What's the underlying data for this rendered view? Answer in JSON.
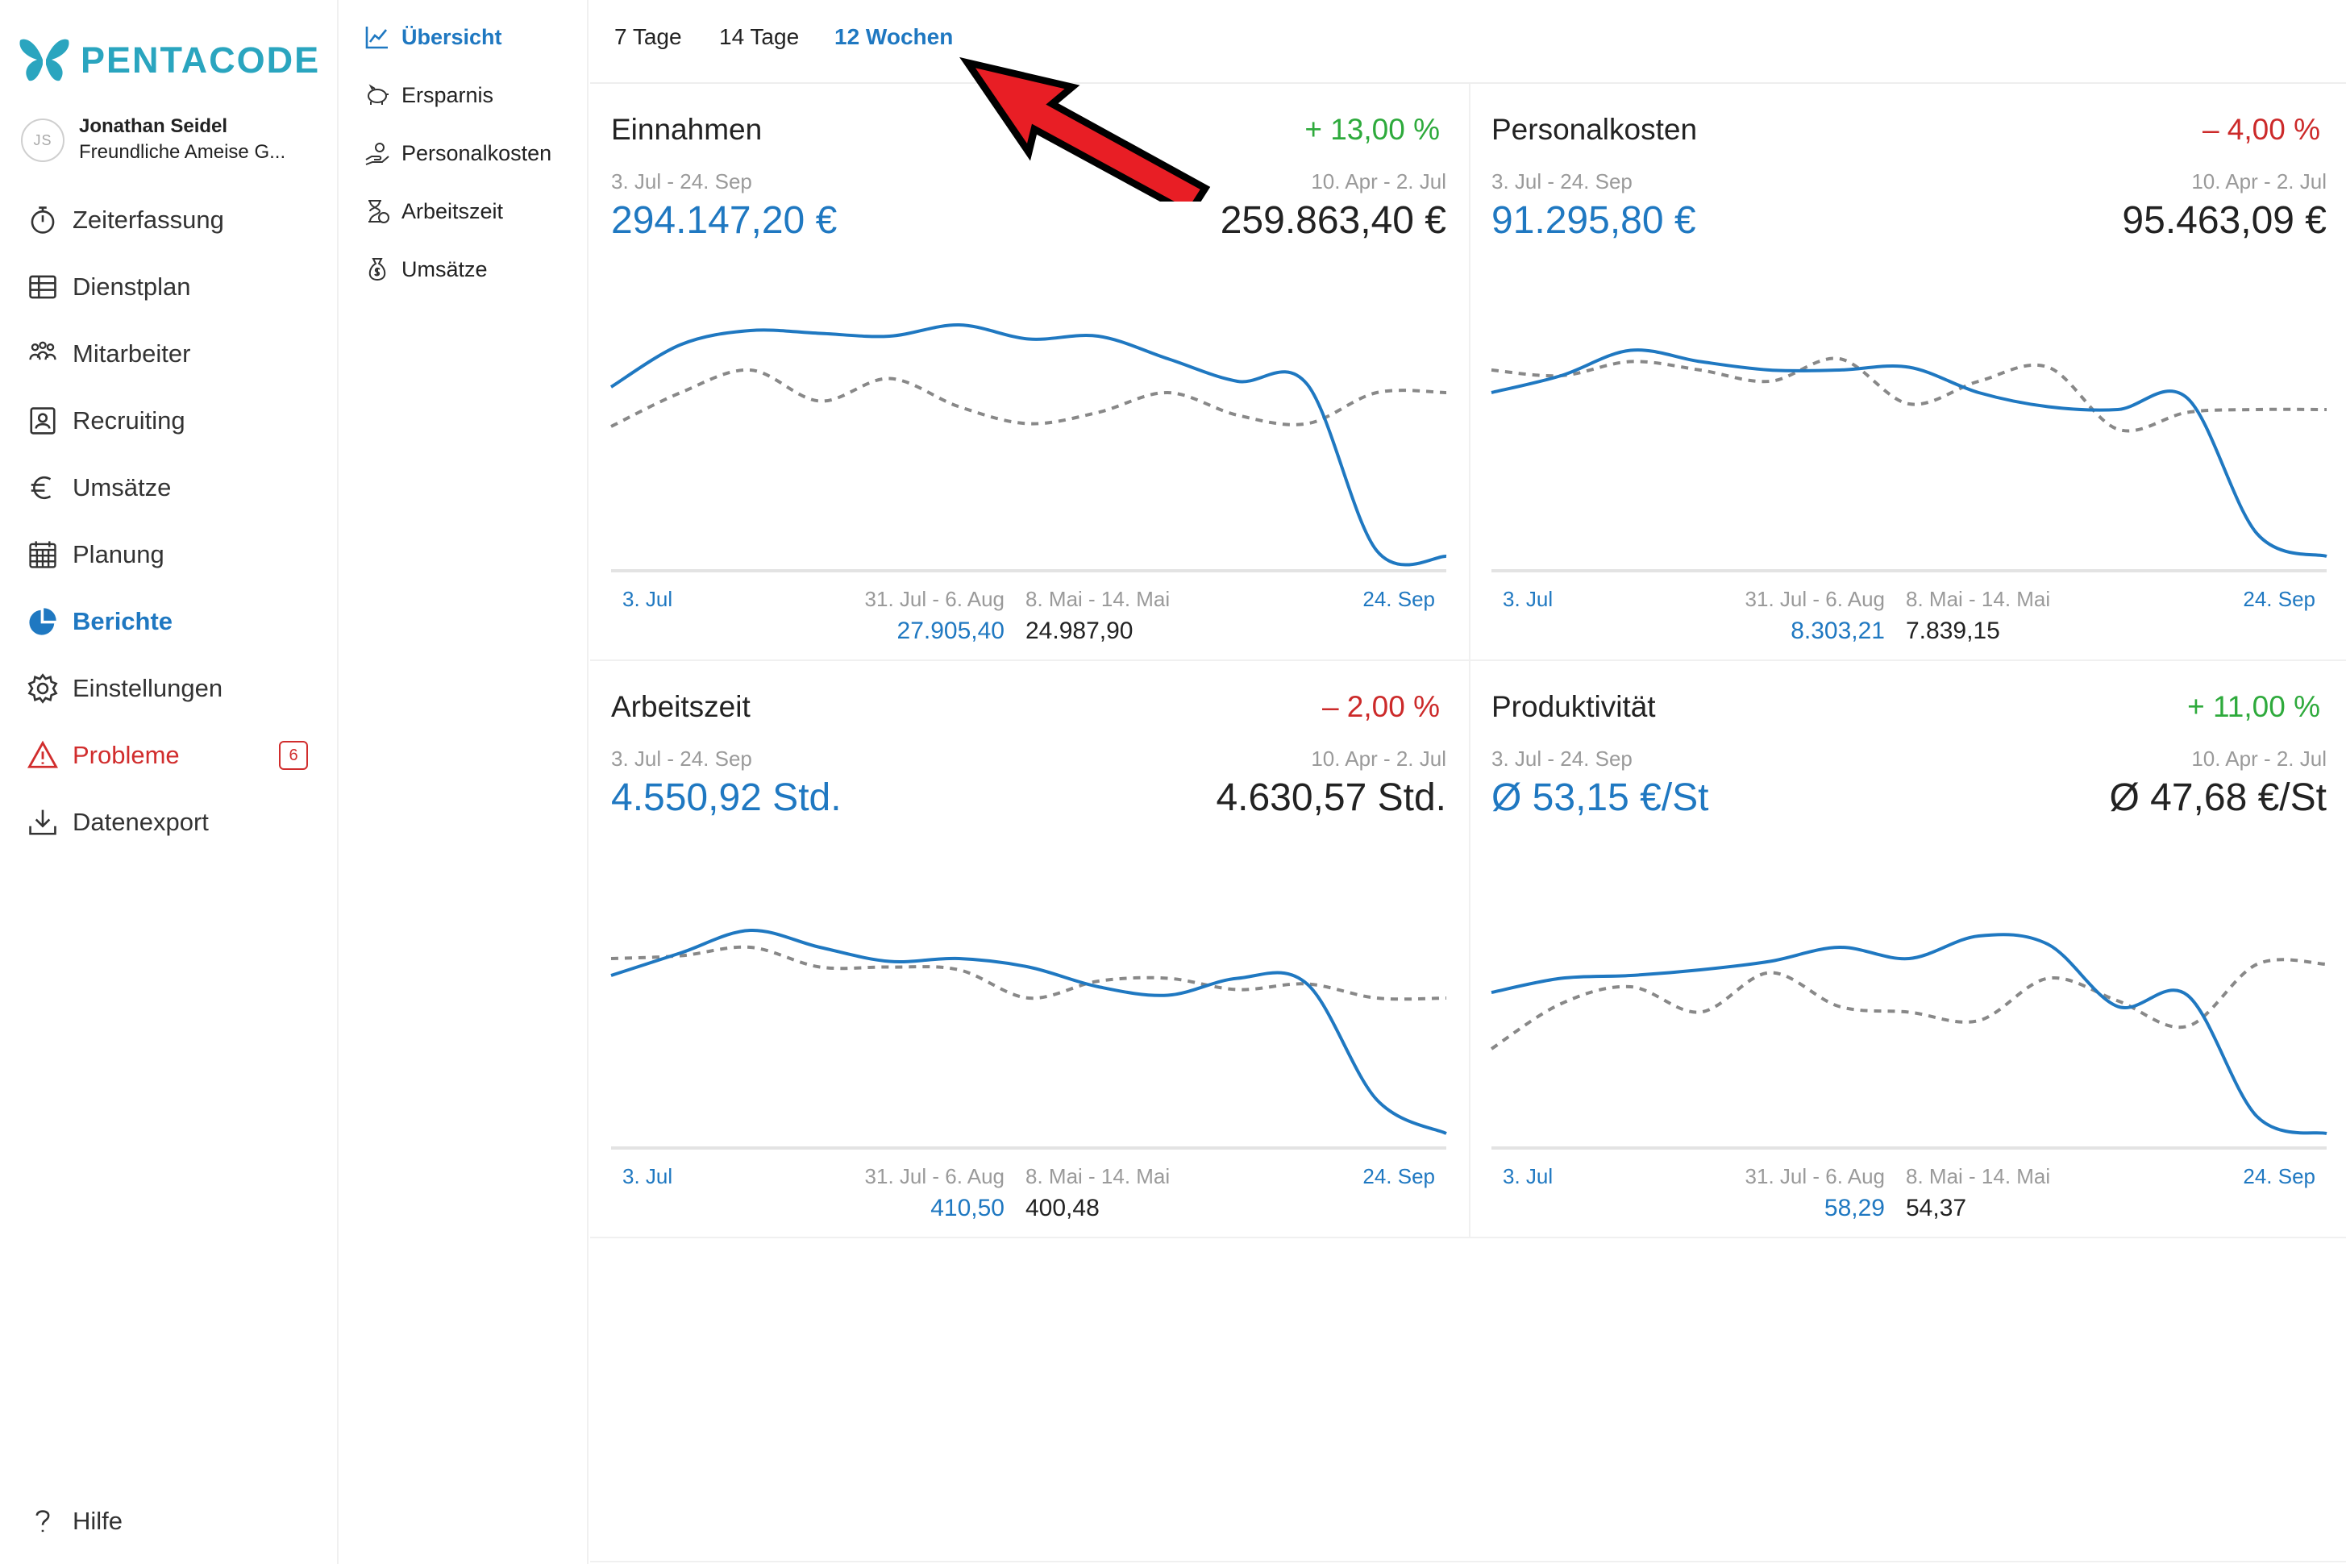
{
  "app": {
    "logo_text": "PENTACODE"
  },
  "user": {
    "initials": "JS",
    "name": "Jonathan Seidel",
    "company": "Freundliche Ameise G..."
  },
  "sidebar": {
    "items": [
      {
        "label": "Zeiterfassung",
        "icon": "stopwatch-icon"
      },
      {
        "label": "Dienstplan",
        "icon": "table-icon"
      },
      {
        "label": "Mitarbeiter",
        "icon": "people-icon"
      },
      {
        "label": "Recruiting",
        "icon": "id-card-icon"
      },
      {
        "label": "Umsätze",
        "icon": "euro-icon"
      },
      {
        "label": "Planung",
        "icon": "calendar-icon"
      },
      {
        "label": "Berichte",
        "icon": "pie-chart-icon",
        "active": true
      },
      {
        "label": "Einstellungen",
        "icon": "gear-icon"
      },
      {
        "label": "Probleme",
        "icon": "warning-icon",
        "badge": "6"
      },
      {
        "label": "Datenexport",
        "icon": "download-icon"
      }
    ],
    "help_label": "Hilfe"
  },
  "subnav": {
    "items": [
      {
        "label": "Übersicht",
        "icon": "line-chart-icon",
        "active": true
      },
      {
        "label": "Ersparnis",
        "icon": "piggy-bank-icon"
      },
      {
        "label": "Personalkosten",
        "icon": "hand-money-icon"
      },
      {
        "label": "Arbeitszeit",
        "icon": "hourglass-icon"
      },
      {
        "label": "Umsätze",
        "icon": "money-bag-icon"
      }
    ]
  },
  "period_tabs": [
    {
      "label": "7 Tage"
    },
    {
      "label": "14 Tage"
    },
    {
      "label": "12 Wochen",
      "active": true
    }
  ],
  "colors": {
    "accent": "#1f78c1",
    "positive": "#2eaa3c",
    "negative": "#cc2a2a",
    "brand": "#2aa5bf",
    "previous_line": "#888888"
  },
  "cards": [
    {
      "title": "Einnahmen",
      "change": "+ 13,00 %",
      "trend": "positive",
      "current_range": "3. Jul - 24. Sep",
      "previous_range": "10. Apr - 2. Jul",
      "current_value": "294.147,20 €",
      "previous_value": "259.863,40 €",
      "axis_start": "3. Jul",
      "axis_end": "24. Sep",
      "best_current_range": "31. Jul - 6. Aug",
      "best_current_value": "27.905,40",
      "best_previous_range": "8. Mai - 14. Mai",
      "best_previous_value": "24.987,90"
    },
    {
      "title": "Personalkosten",
      "change": "– 4,00 %",
      "trend": "negative",
      "current_range": "3. Jul - 24. Sep",
      "previous_range": "10. Apr - 2. Jul",
      "current_value": "91.295,80 €",
      "previous_value": "95.463,09 €",
      "axis_start": "3. Jul",
      "axis_end": "24. Sep",
      "best_current_range": "31. Jul - 6. Aug",
      "best_current_value": "8.303,21",
      "best_previous_range": "8. Mai - 14. Mai",
      "best_previous_value": "7.839,15"
    },
    {
      "title": "Arbeitszeit",
      "change": "– 2,00 %",
      "trend": "negative",
      "current_range": "3. Jul - 24. Sep",
      "previous_range": "10. Apr - 2. Jul",
      "current_value": "4.550,92 Std.",
      "previous_value": "4.630,57 Std.",
      "axis_start": "3. Jul",
      "axis_end": "24. Sep",
      "best_current_range": "31. Jul - 6. Aug",
      "best_current_value": "410,50",
      "best_previous_range": "8. Mai - 14. Mai",
      "best_previous_value": "400,48"
    },
    {
      "title": "Produktivität",
      "change": "+ 11,00 %",
      "trend": "positive",
      "current_range": "3. Jul - 24. Sep",
      "previous_range": "10. Apr - 2. Jul",
      "current_value": "Ø 53,15 €/St",
      "previous_value": "Ø 47,68 €/St",
      "axis_start": "3. Jul",
      "axis_end": "24. Sep",
      "best_current_range": "31. Jul - 6. Aug",
      "best_current_value": "58,29",
      "best_previous_range": "8. Mai - 14. Mai",
      "best_previous_value": "54,37"
    }
  ],
  "chart_data": [
    {
      "type": "line",
      "title": "Einnahmen",
      "x": [
        1,
        2,
        3,
        4,
        5,
        6,
        7,
        8,
        9,
        10,
        11,
        12,
        13
      ],
      "ylim": [
        0,
        100
      ],
      "series": [
        {
          "values": [
            60,
            75,
            80,
            79,
            78,
            82,
            77,
            78,
            70,
            62,
            61,
            2,
            0
          ]
        },
        {
          "values": [
            46,
            58,
            66,
            55,
            63,
            53,
            47,
            51,
            58,
            50,
            47,
            58,
            58
          ]
        }
      ]
    },
    {
      "type": "line",
      "title": "Personalkosten",
      "x": [
        1,
        2,
        3,
        4,
        5,
        6,
        7,
        8,
        9,
        10,
        11,
        12,
        13
      ],
      "ylim": [
        0,
        100
      ],
      "series": [
        {
          "values": [
            58,
            64,
            73,
            69,
            66,
            66,
            67,
            58,
            53,
            52,
            56,
            8,
            0
          ]
        },
        {
          "values": [
            66,
            64,
            69,
            66,
            62,
            70,
            54,
            62,
            67,
            45,
            51,
            52,
            52
          ]
        }
      ]
    },
    {
      "type": "line",
      "title": "Arbeitszeit",
      "x": [
        1,
        2,
        3,
        4,
        5,
        6,
        7,
        8,
        9,
        10,
        11,
        12,
        13
      ],
      "ylim": [
        0,
        100
      ],
      "series": [
        {
          "values": [
            56,
            64,
            72,
            66,
            61,
            62,
            59,
            52,
            49,
            55,
            53,
            12,
            0
          ]
        },
        {
          "values": [
            62,
            63,
            66,
            59,
            59,
            58,
            48,
            54,
            55,
            51,
            53,
            48,
            48
          ]
        }
      ]
    },
    {
      "type": "line",
      "title": "Produktivität",
      "x": [
        1,
        2,
        3,
        4,
        5,
        6,
        7,
        8,
        9,
        10,
        11,
        12,
        13
      ],
      "ylim": [
        0,
        100
      ],
      "series": [
        {
          "values": [
            50,
            55,
            56,
            58,
            61,
            66,
            62,
            70,
            67,
            45,
            49,
            6,
            0
          ]
        },
        {
          "values": [
            30,
            46,
            52,
            43,
            57,
            45,
            43,
            40,
            55,
            47,
            38,
            60,
            60
          ]
        }
      ]
    }
  ]
}
